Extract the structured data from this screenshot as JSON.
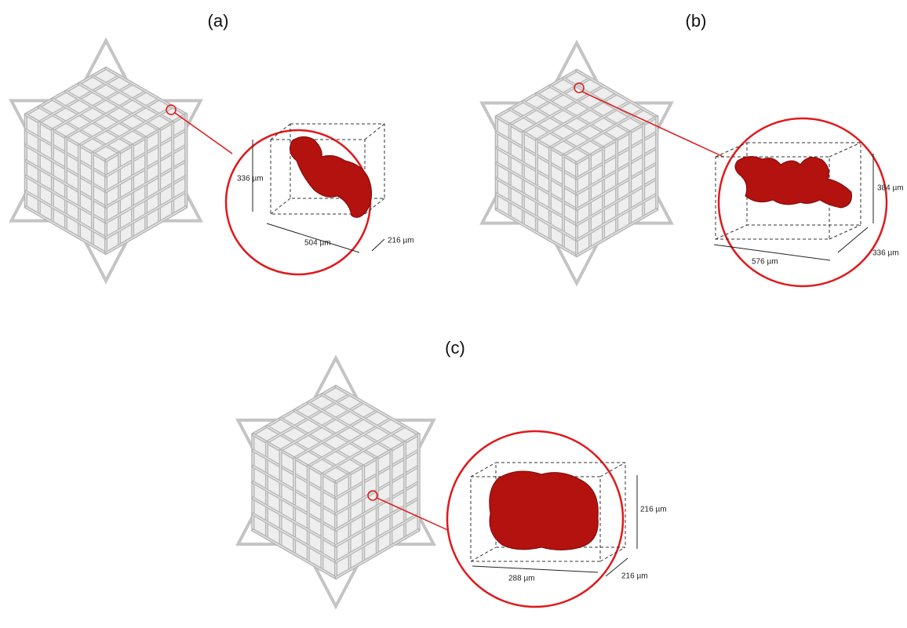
{
  "panels": [
    {
      "label": "(a)",
      "dimensions": {
        "height": "336 µm",
        "length": "504 µm",
        "depth": "216 µm"
      }
    },
    {
      "label": "(b)",
      "dimensions": {
        "height": "384 µm",
        "length": "576 µm",
        "depth": "336 µm"
      }
    },
    {
      "label": "(c)",
      "dimensions": {
        "height": "216 µm",
        "length": "288 µm",
        "depth": "216 µm"
      }
    }
  ]
}
